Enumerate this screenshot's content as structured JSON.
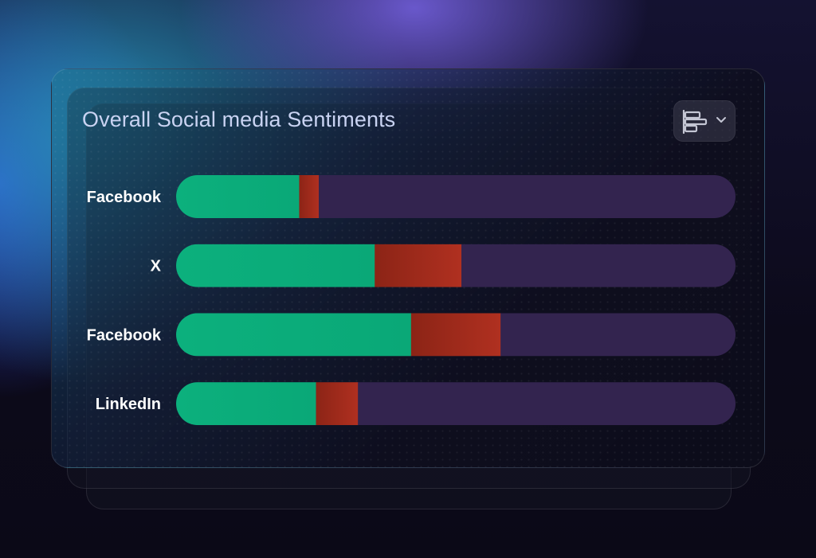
{
  "header": {
    "title": "Overall Social media Sentiments"
  },
  "chart_type_button": {
    "icon": "bar-chart-horizontal-icon",
    "chevron": "chevron-down-icon"
  },
  "colors": {
    "positive": "#0aa877",
    "negative": "#b03020",
    "neutral": "#33244f"
  },
  "chart_data": {
    "type": "bar",
    "orientation": "horizontal",
    "stacked": true,
    "categories": [
      "Facebook",
      "X",
      "Facebook",
      "LinkedIn"
    ],
    "series": [
      {
        "values": [
          22,
          35.5,
          42,
          25
        ]
      },
      {
        "values": [
          3.5,
          15.5,
          16,
          7.5
        ]
      },
      {
        "values": [
          74.5,
          49,
          42,
          67.5
        ]
      }
    ],
    "xlim": [
      0,
      100
    ],
    "title": "Overall Social media Sentiments",
    "xlabel": "",
    "ylabel": "",
    "grid": false,
    "legend": "none"
  }
}
